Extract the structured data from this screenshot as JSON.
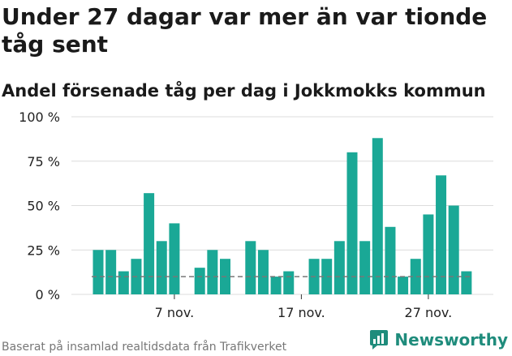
{
  "header": {
    "title": "Under 27 dagar var mer än var tionde tåg sent",
    "subtitle": "Andel försenade tåg per dag i Jokkmokks kommun"
  },
  "footer": {
    "source": "Baserat på insamlad realtidsdata från Trafikverket",
    "brand": "Newsworthy"
  },
  "colors": {
    "bar": "#1aa896",
    "grid": "#dcdcdc",
    "reference_line": "#777777",
    "brand": "#1f8c7c"
  },
  "chart_data": {
    "type": "bar",
    "x": [
      "2023-11-01",
      "2023-11-02",
      "2023-11-03",
      "2023-11-04",
      "2023-11-05",
      "2023-11-06",
      "2023-11-07",
      "2023-11-08",
      "2023-11-09",
      "2023-11-10",
      "2023-11-11",
      "2023-11-12",
      "2023-11-13",
      "2023-11-14",
      "2023-11-15",
      "2023-11-16",
      "2023-11-17",
      "2023-11-18",
      "2023-11-19",
      "2023-11-20",
      "2023-11-21",
      "2023-11-22",
      "2023-11-23",
      "2023-11-24",
      "2023-11-25",
      "2023-11-26",
      "2023-11-27",
      "2023-11-28",
      "2023-11-29",
      "2023-11-30"
    ],
    "values": [
      25,
      25,
      13,
      20,
      57,
      30,
      40,
      null,
      15,
      25,
      20,
      null,
      30,
      25,
      10,
      13,
      null,
      20,
      20,
      30,
      80,
      30,
      88,
      38,
      10,
      20,
      45,
      67,
      50,
      13
    ],
    "reference_value": 10,
    "ylim": [
      0,
      100
    ],
    "yticks": [
      0,
      25,
      50,
      75,
      100
    ],
    "ytick_labels": [
      "0 %",
      "25 %",
      "50 %",
      "75 %",
      "100 %"
    ],
    "xtick_labels": [
      {
        "date": "2023-11-07",
        "label": "7 nov."
      },
      {
        "date": "2023-11-17",
        "label": "17 nov."
      },
      {
        "date": "2023-11-27",
        "label": "27 nov."
      }
    ],
    "grid": true
  }
}
